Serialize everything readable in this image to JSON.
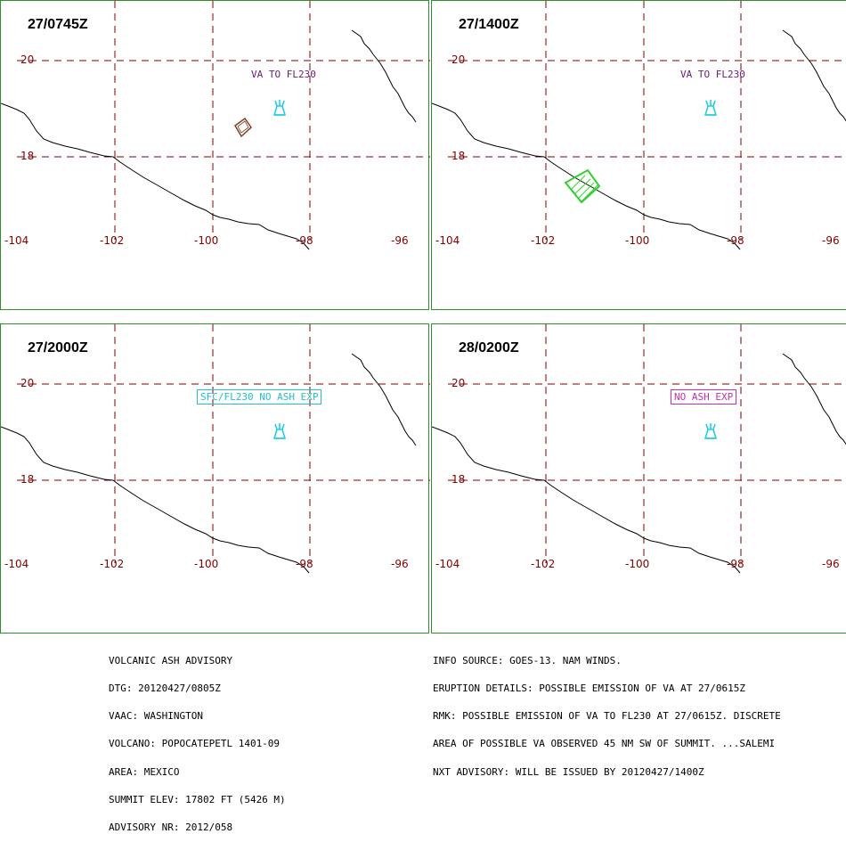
{
  "panels": [
    {
      "time": "27/0745Z",
      "label": "VA TO FL230",
      "label_boxed": false,
      "label_color": "#6a1b7a",
      "ash_polygon": "brown"
    },
    {
      "time": "27/1400Z",
      "label": "VA TO FL230",
      "label_boxed": false,
      "label_color": "#6a1b7a",
      "ash_polygon": "green"
    },
    {
      "time": "27/2000Z",
      "label": "SFC/FL230 NO ASH EXP",
      "label_boxed": true,
      "label_color": "#22c0d0",
      "ash_polygon": "none"
    },
    {
      "time": "28/0200Z",
      "label": "NO ASH EXP",
      "label_boxed": true,
      "label_color": "#c030b0",
      "ash_polygon": "none"
    }
  ],
  "grid": {
    "lat_labels": [
      "20",
      "18"
    ],
    "lon_labels": [
      "-104",
      "-102",
      "-100",
      "-98",
      "-96"
    ]
  },
  "colors": {
    "grid": "#800000",
    "border": "#2f8f2f",
    "volcano": "#22d0e0",
    "ash_brown": "#7a4020",
    "ash_green": "#30d030"
  },
  "advisory_left": [
    "VOLCANIC ASH ADVISORY",
    "DTG: 20120427/0805Z",
    "VAAC: WASHINGTON",
    "VOLCANO: POPOCATEPETL 1401-09",
    "AREA: MEXICO",
    "SUMMIT ELEV: 17802 FT (5426 M)",
    "ADVISORY NR: 2012/058"
  ],
  "advisory_right": [
    "INFO SOURCE: GOES-13. NAM WINDS.",
    "ERUPTION DETAILS: POSSIBLE EMISSION OF VA AT 27/0615Z",
    "RMK: POSSIBLE EMISSION OF VA TO FL230 AT 27/0615Z. DISCRETE",
    "AREA OF POSSIBLE VA OBSERVED 45 NM SW OF SUMMIT. ...SALEMI",
    "NXT ADVISORY: WILL BE ISSUED BY 20120427/1400Z"
  ],
  "icons": {
    "volcano": "volcano-icon"
  }
}
